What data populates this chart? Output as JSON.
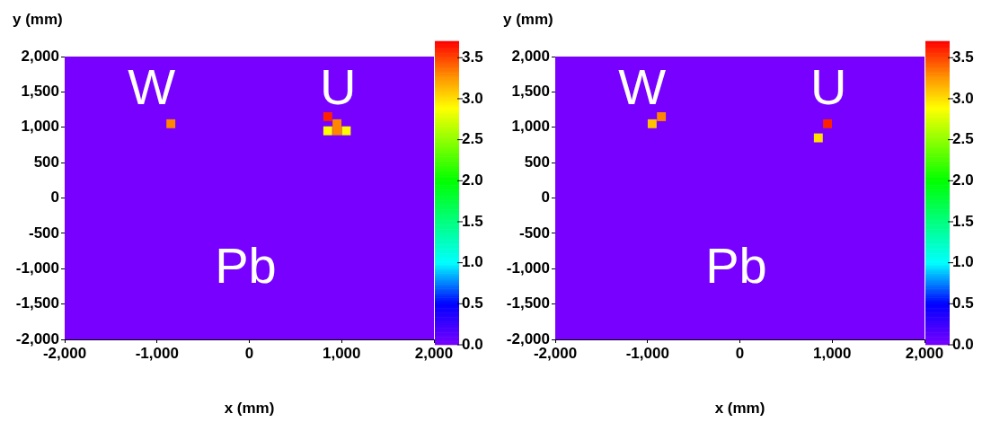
{
  "chart_data": [
    {
      "type": "scatter",
      "xlabel": "x (mm)",
      "ylabel": "y (mm)",
      "marker": "square",
      "xlim": [
        -2000,
        2000
      ],
      "xticks": [
        {
          "value": -2000,
          "label": "-2,000"
        },
        {
          "value": -1000,
          "label": "-1,000"
        },
        0,
        {
          "value": 1000,
          "label": "1,000"
        },
        {
          "value": 2000,
          "label": "2,000"
        }
      ],
      "ylim": [
        -2000,
        2000
      ],
      "yticks": [
        {
          "value": -2000,
          "label": "-2,000"
        },
        {
          "value": -1500,
          "label": "-1,500"
        },
        {
          "value": -1000,
          "label": "-1,000"
        },
        -500,
        0,
        500,
        {
          "value": 1000,
          "label": "1,000"
        },
        {
          "value": 1500,
          "label": "1,500"
        },
        {
          "value": 2000,
          "label": "2,000"
        }
      ],
      "clim": [
        0,
        3.7
      ],
      "cticks": [
        {
          "value": 0,
          "label": "0.0"
        },
        0.5,
        {
          "value": 1,
          "label": "1.0"
        },
        1.5,
        {
          "value": 2,
          "label": "2.0"
        },
        2.5,
        {
          "value": 3,
          "label": "3.0"
        },
        3.5
      ],
      "annotations": [
        "W",
        "U",
        "Pb"
      ],
      "x": [
        850,
        -850,
        950,
        850,
        950,
        1050
      ],
      "values": [
        1150,
        1050,
        1050,
        950,
        950,
        950
      ],
      "cvalues": [
        3.6,
        3.3,
        3.3,
        2.9,
        3.3,
        2.9
      ]
    },
    {
      "type": "scatter",
      "xlabel": "x (mm)",
      "ylabel": "y (mm)",
      "marker": "square",
      "xlim": [
        -2000,
        2000
      ],
      "xticks": [
        {
          "value": -2000,
          "label": "-2,000"
        },
        {
          "value": -1000,
          "label": "-1,000"
        },
        0,
        {
          "value": 1000,
          "label": "1,000"
        },
        {
          "value": 2000,
          "label": "2,000"
        }
      ],
      "ylim": [
        -2000,
        2000
      ],
      "yticks": [
        {
          "value": -2000,
          "label": "-2,000"
        },
        {
          "value": -1500,
          "label": "-1,500"
        },
        {
          "value": -1000,
          "label": "-1,000"
        },
        -500,
        0,
        500,
        {
          "value": 1000,
          "label": "1,000"
        },
        {
          "value": 1500,
          "label": "1,500"
        },
        {
          "value": 2000,
          "label": "2,000"
        }
      ],
      "clim": [
        0,
        3.7
      ],
      "cticks": [
        {
          "value": 0,
          "label": "0.0"
        },
        0.5,
        {
          "value": 1,
          "label": "1.0"
        },
        1.5,
        {
          "value": 2,
          "label": "2.0"
        },
        2.5,
        {
          "value": 3,
          "label": "3.0"
        },
        3.5
      ],
      "annotations": [
        "W",
        "U",
        "Pb"
      ],
      "x": [
        -850,
        -950,
        950,
        850
      ],
      "values": [
        1150,
        1050,
        1050,
        850
      ],
      "cvalues": [
        3.3,
        3.1,
        3.6,
        3.0
      ]
    }
  ]
}
